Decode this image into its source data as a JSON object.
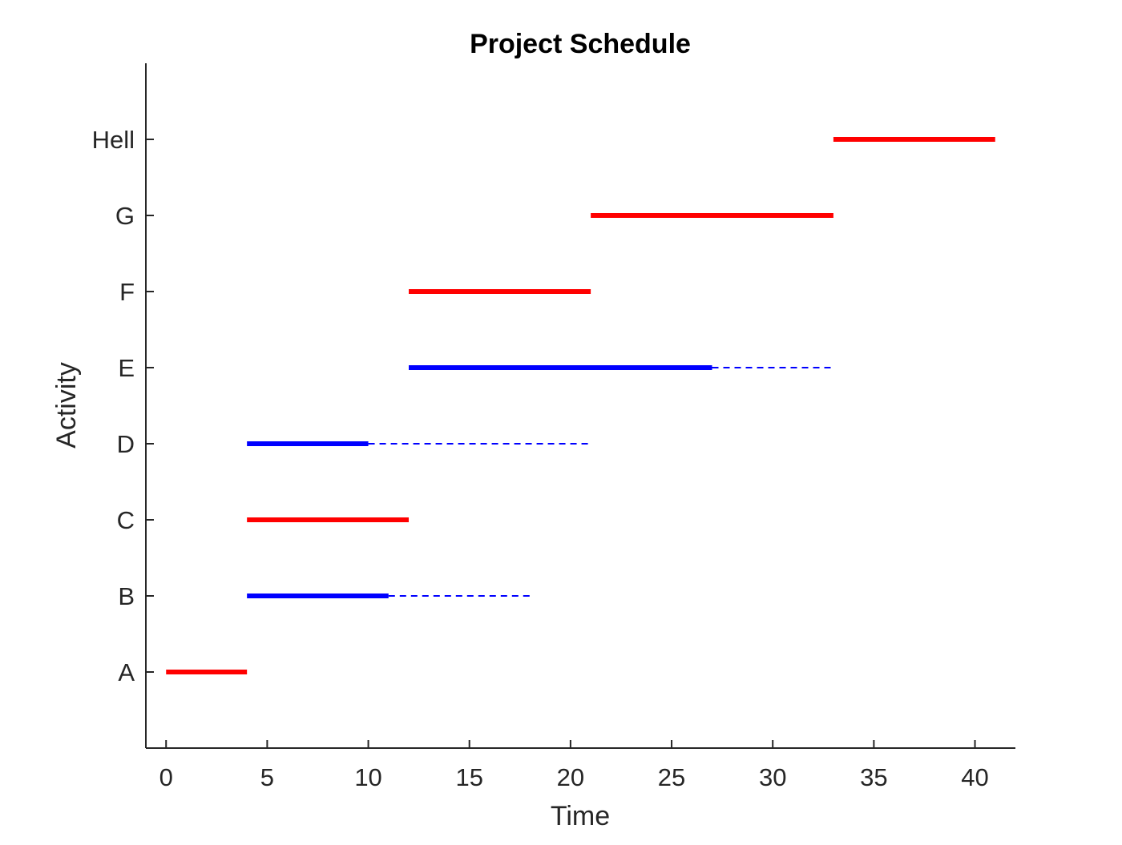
{
  "chart_data": {
    "type": "gantt",
    "title": "Project Schedule",
    "xlabel": "Time",
    "ylabel": "Activity",
    "xlim": [
      -1,
      42
    ],
    "ylim": [
      0,
      9
    ],
    "x_ticks": [
      0,
      5,
      10,
      15,
      20,
      25,
      30,
      35,
      40
    ],
    "categories": [
      "A",
      "B",
      "C",
      "D",
      "E",
      "F",
      "G",
      "Hell"
    ],
    "series": [
      {
        "name": "",
        "color": "#ff0000",
        "style": "solid",
        "bars": [
          {
            "activity": "A",
            "start": 0,
            "end": 4
          },
          {
            "activity": "C",
            "start": 4,
            "end": 12
          },
          {
            "activity": "F",
            "start": 12,
            "end": 21
          },
          {
            "activity": "G",
            "start": 21,
            "end": 33
          },
          {
            "activity": "Hell",
            "start": 33,
            "end": 41
          }
        ]
      },
      {
        "name": "",
        "color": "#0000ff",
        "style": "solid",
        "bars": [
          {
            "activity": "B",
            "start": 4,
            "end": 11
          },
          {
            "activity": "D",
            "start": 4,
            "end": 10
          },
          {
            "activity": "E",
            "start": 12,
            "end": 27
          }
        ]
      },
      {
        "name": "",
        "color": "#0000ff",
        "style": "dashed",
        "bars": [
          {
            "activity": "B",
            "start": 11,
            "end": 18
          },
          {
            "activity": "D",
            "start": 10,
            "end": 21
          },
          {
            "activity": "E",
            "start": 27,
            "end": 33
          }
        ]
      }
    ],
    "grid": false,
    "legend": "none"
  }
}
